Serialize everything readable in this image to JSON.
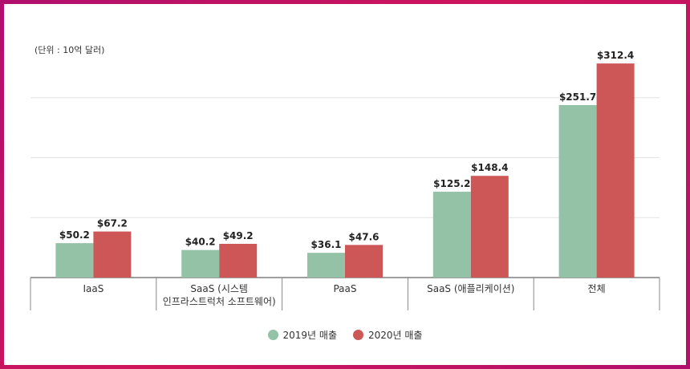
{
  "chart_data": {
    "type": "bar",
    "unit_note": "(단위 : 10억 달러)",
    "categories": [
      "IaaS",
      "SaaS (시스템\n인프라스트럭처 소프트웨어)",
      "PaaS",
      "SaaS (애플리케이션)",
      "전체"
    ],
    "series": [
      {
        "name": "2019년 매출",
        "color": "#93c2a6",
        "values": [
          50.2,
          40.2,
          36.1,
          125.2,
          251.7
        ],
        "labels": [
          "$50.2",
          "$40.2",
          "$36.1",
          "$125.2",
          "$251.7"
        ]
      },
      {
        "name": "2020년 매출",
        "color": "#cd5757",
        "values": [
          67.2,
          49.2,
          47.6,
          148.4,
          312.4
        ],
        "labels": [
          "$67.2",
          "$49.2",
          "$47.6",
          "$148.4",
          "$312.4"
        ]
      }
    ],
    "ylim": [
      0,
      350
    ],
    "grid": true,
    "legend_position": "bottom-center"
  }
}
